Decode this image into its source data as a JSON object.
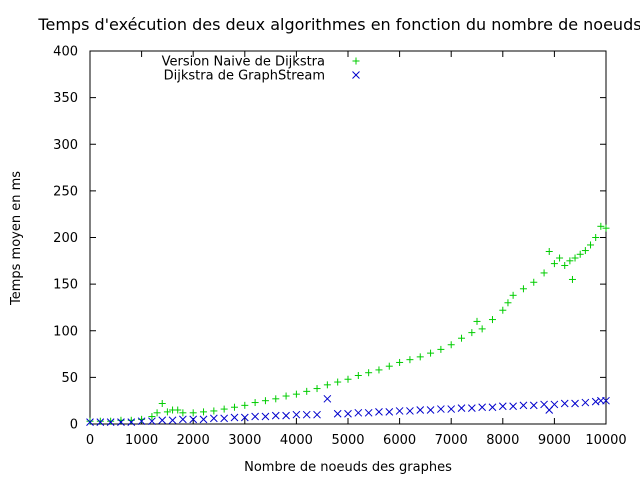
{
  "chart_data": {
    "type": "scatter",
    "title": "Temps d'exécution des deux algorithmes en fonction du nombre de noeuds",
    "xlabel": "Nombre de noeuds des graphes",
    "ylabel": "Temps moyen en ms",
    "xlim": [
      0,
      10000
    ],
    "ylim": [
      0,
      400
    ],
    "xticks": [
      0,
      1000,
      2000,
      3000,
      4000,
      5000,
      6000,
      7000,
      8000,
      9000,
      10000
    ],
    "yticks": [
      0,
      50,
      100,
      150,
      200,
      250,
      300,
      350,
      400
    ],
    "grid": false,
    "legend_position": "top-left",
    "series": [
      {
        "name": "Version Naive de Dijkstra",
        "marker": "+",
        "color": "#00cc00",
        "points": [
          [
            0,
            3
          ],
          [
            200,
            3
          ],
          [
            400,
            3
          ],
          [
            600,
            4
          ],
          [
            800,
            4
          ],
          [
            1000,
            5
          ],
          [
            1200,
            8
          ],
          [
            1300,
            12
          ],
          [
            1400,
            22
          ],
          [
            1500,
            13
          ],
          [
            1600,
            15
          ],
          [
            1700,
            15
          ],
          [
            1800,
            12
          ],
          [
            2000,
            12
          ],
          [
            2200,
            13
          ],
          [
            2400,
            14
          ],
          [
            2600,
            16
          ],
          [
            2800,
            18
          ],
          [
            3000,
            20
          ],
          [
            3200,
            23
          ],
          [
            3400,
            25
          ],
          [
            3600,
            27
          ],
          [
            3800,
            30
          ],
          [
            4000,
            32
          ],
          [
            4200,
            35
          ],
          [
            4400,
            38
          ],
          [
            4600,
            42
          ],
          [
            4800,
            45
          ],
          [
            5000,
            48
          ],
          [
            5200,
            52
          ],
          [
            5400,
            55
          ],
          [
            5600,
            58
          ],
          [
            5800,
            62
          ],
          [
            6000,
            66
          ],
          [
            6200,
            69
          ],
          [
            6400,
            72
          ],
          [
            6600,
            76
          ],
          [
            6800,
            80
          ],
          [
            7000,
            85
          ],
          [
            7200,
            92
          ],
          [
            7400,
            98
          ],
          [
            7500,
            110
          ],
          [
            7600,
            102
          ],
          [
            7800,
            112
          ],
          [
            8000,
            122
          ],
          [
            8100,
            130
          ],
          [
            8200,
            138
          ],
          [
            8400,
            145
          ],
          [
            8600,
            152
          ],
          [
            8800,
            162
          ],
          [
            8900,
            185
          ],
          [
            9000,
            172
          ],
          [
            9100,
            178
          ],
          [
            9200,
            170
          ],
          [
            9300,
            175
          ],
          [
            9350,
            155
          ],
          [
            9400,
            178
          ],
          [
            9500,
            182
          ],
          [
            9600,
            186
          ],
          [
            9700,
            192
          ],
          [
            9800,
            200
          ],
          [
            9900,
            212
          ],
          [
            10000,
            210
          ]
        ]
      },
      {
        "name": "Dijkstra de  GraphStream",
        "marker": "x",
        "color": "#0000cc",
        "points": [
          [
            0,
            2
          ],
          [
            200,
            2
          ],
          [
            400,
            2
          ],
          [
            600,
            2
          ],
          [
            800,
            2
          ],
          [
            1000,
            3
          ],
          [
            1200,
            3
          ],
          [
            1400,
            4
          ],
          [
            1600,
            4
          ],
          [
            1800,
            5
          ],
          [
            2000,
            5
          ],
          [
            2200,
            5
          ],
          [
            2400,
            6
          ],
          [
            2600,
            6
          ],
          [
            2800,
            7
          ],
          [
            3000,
            7
          ],
          [
            3200,
            8
          ],
          [
            3400,
            8
          ],
          [
            3600,
            9
          ],
          [
            3800,
            9
          ],
          [
            4000,
            10
          ],
          [
            4200,
            10
          ],
          [
            4400,
            10
          ],
          [
            4600,
            27
          ],
          [
            4800,
            11
          ],
          [
            5000,
            11
          ],
          [
            5200,
            12
          ],
          [
            5400,
            12
          ],
          [
            5600,
            13
          ],
          [
            5800,
            13
          ],
          [
            6000,
            14
          ],
          [
            6200,
            14
          ],
          [
            6400,
            15
          ],
          [
            6600,
            15
          ],
          [
            6800,
            16
          ],
          [
            7000,
            16
          ],
          [
            7200,
            17
          ],
          [
            7400,
            17
          ],
          [
            7600,
            18
          ],
          [
            7800,
            18
          ],
          [
            8000,
            19
          ],
          [
            8200,
            19
          ],
          [
            8400,
            20
          ],
          [
            8600,
            20
          ],
          [
            8800,
            21
          ],
          [
            8900,
            15
          ],
          [
            9000,
            21
          ],
          [
            9200,
            22
          ],
          [
            9400,
            22
          ],
          [
            9600,
            23
          ],
          [
            9800,
            24
          ],
          [
            9900,
            25
          ],
          [
            10000,
            25
          ]
        ]
      }
    ]
  }
}
